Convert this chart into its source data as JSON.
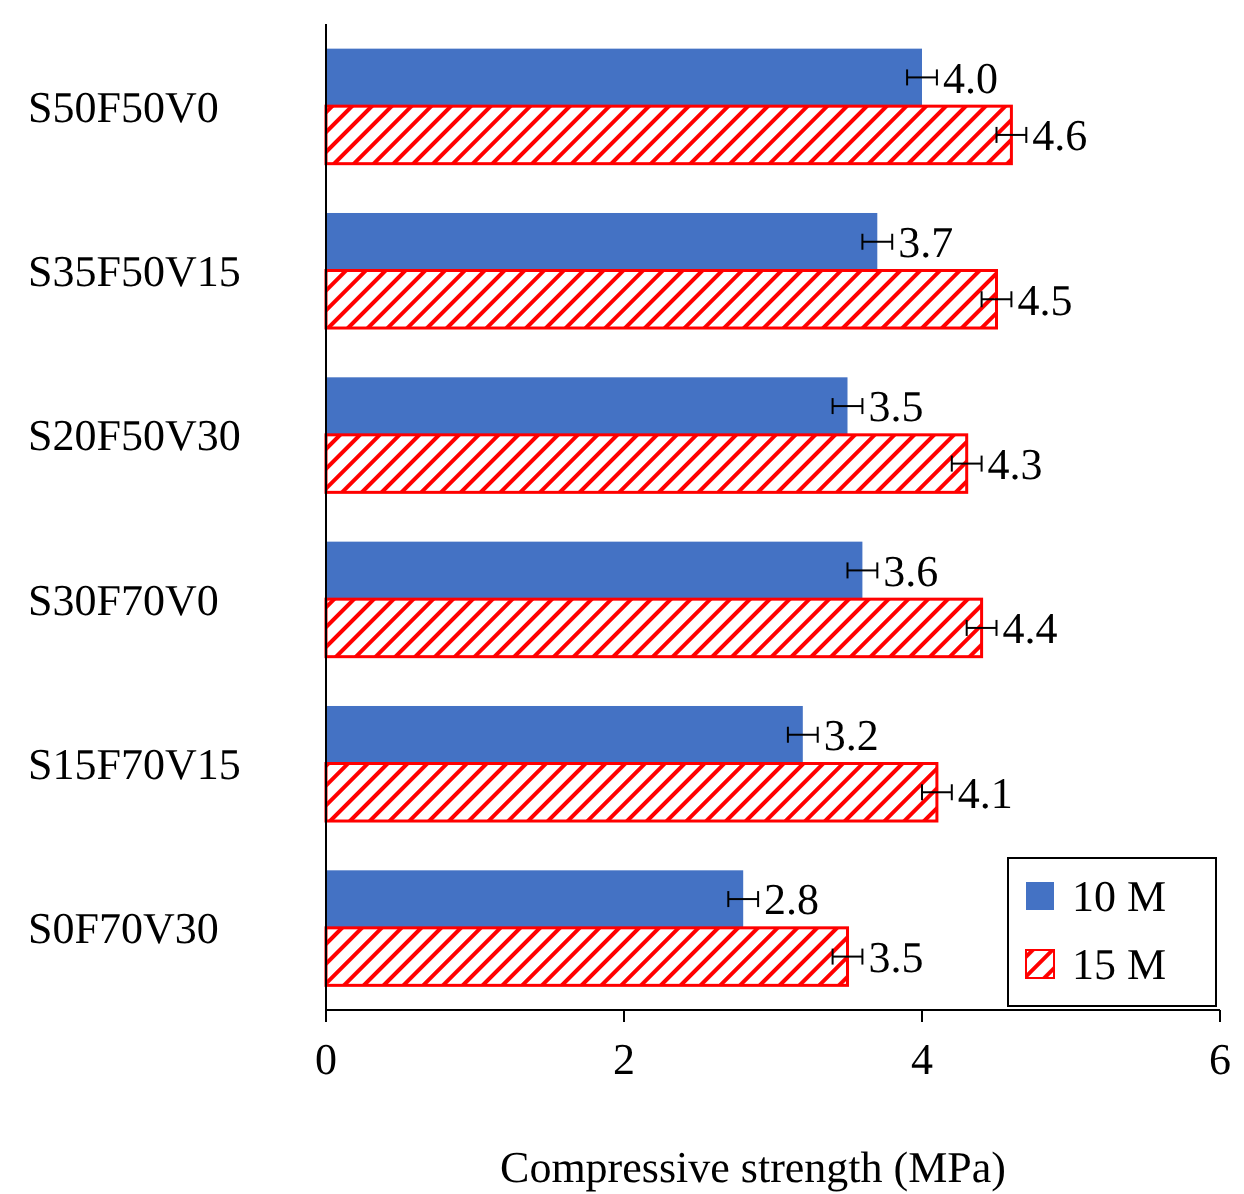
{
  "chart_data": {
    "type": "bar",
    "orientation": "horizontal",
    "xlabel": "Compressive strength (MPa)",
    "categories": [
      "S50F50V0",
      "S35F50V15",
      "S20F50V30",
      "S30F70V0",
      "S15F70V15",
      "S0F70V30"
    ],
    "series": [
      {
        "name": "10 M",
        "color": "#4472c4",
        "values": [
          4.0,
          3.7,
          3.5,
          3.6,
          3.2,
          2.8
        ],
        "errors": [
          0.1,
          0.1,
          0.1,
          0.1,
          0.1,
          0.1
        ],
        "value_labels": [
          "4.0",
          "3.7",
          "3.5",
          "3.6",
          "3.2",
          "2.8"
        ]
      },
      {
        "name": "15 M",
        "color": "#ff0000",
        "values": [
          4.6,
          4.5,
          4.3,
          4.4,
          4.1,
          3.5
        ],
        "errors": [
          0.1,
          0.1,
          0.1,
          0.1,
          0.1,
          0.1
        ],
        "value_labels": [
          "4.6",
          "4.5",
          "4.3",
          "4.4",
          "4.1",
          "3.5"
        ]
      }
    ],
    "xlim": [
      0,
      6
    ],
    "xticks": [
      0,
      2,
      4,
      6
    ],
    "grid": false,
    "legend": "bottom right"
  }
}
